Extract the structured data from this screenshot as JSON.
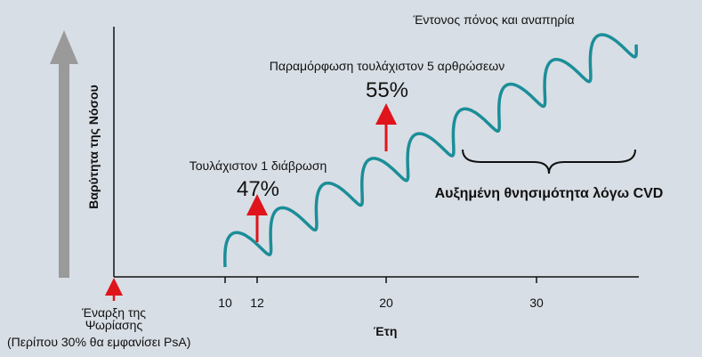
{
  "axis": {
    "y_label": "Βαρύτητα της Νόσου",
    "x_label": "Έτη",
    "x_ticks": [
      "10",
      "12",
      "20",
      "30"
    ]
  },
  "onset": {
    "line1": "Έναρξη της",
    "line2": "Ψωρίασης",
    "note": "(Περίπου 30% θα εμφανίσει PsA)"
  },
  "annotations": [
    {
      "label": "Τουλάχιστον 1 διάβρωση",
      "percent": "47%"
    },
    {
      "label": "Παραμόρφωση τουλάχιστον 5 αρθρώσεων",
      "percent": "55%"
    },
    {
      "label": "Έντονος πόνος και αναπηρία"
    }
  ],
  "brace_label": "Αυξημένη θνησιμότητα λόγω CVD"
}
